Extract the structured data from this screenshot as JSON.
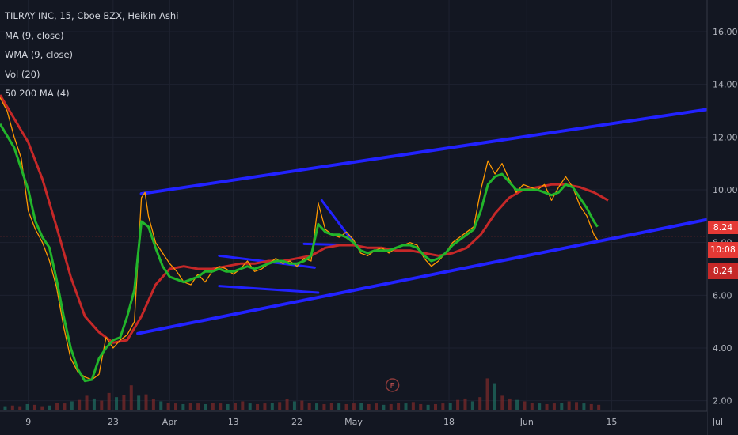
{
  "header": {
    "symbol_line": "TILRAY INC, 15, Cboe BZX, Heikin Ashi",
    "indicators": [
      "MA (9, close)",
      "WMA (9, close)",
      "Vol (20)",
      "50 200 MA (4)"
    ]
  },
  "price_tags": {
    "last": "8.24",
    "timer": "10:08",
    "ma": "8.24"
  },
  "event_marker": "E",
  "colors": {
    "background": "#131722",
    "price": "#ff9800",
    "ma_red": "#c62828",
    "ma_green": "#22b52b",
    "trendline": "#2222ff",
    "tag": "#e53935"
  },
  "chart_data": {
    "type": "line",
    "ylim": [
      1.6,
      17.2
    ],
    "y_ticks": [
      2,
      4,
      6,
      8,
      10,
      12,
      14,
      16
    ],
    "y_tick_labels": [
      "2.00",
      "4.00",
      "6.00",
      "8.00",
      "10.00",
      "12.00",
      "14.00",
      "16.00"
    ],
    "x_tick_labels": [
      "9",
      "23",
      "Apr",
      "13",
      "22",
      "May",
      "18",
      "Jun",
      "15",
      "Jul"
    ],
    "x_ticks": [
      {
        "label": "9",
        "t": 0.04
      },
      {
        "label": "23",
        "t": 0.16
      },
      {
        "label": "Apr",
        "t": 0.24
      },
      {
        "label": "13",
        "t": 0.33
      },
      {
        "label": "22",
        "t": 0.42
      },
      {
        "label": "May",
        "t": 0.5
      },
      {
        "label": "18",
        "t": 0.635
      },
      {
        "label": "Jun",
        "t": 0.745
      },
      {
        "label": "15",
        "t": 0.865
      },
      {
        "label": "Jul",
        "t": 1.015
      }
    ],
    "series": [
      {
        "name": "Price",
        "points": [
          [
            0,
            13.5
          ],
          [
            0.01,
            13.0
          ],
          [
            0.02,
            12.0
          ],
          [
            0.03,
            11.2
          ],
          [
            0.04,
            9.2
          ],
          [
            0.05,
            8.5
          ],
          [
            0.06,
            8.0
          ],
          [
            0.07,
            7.3
          ],
          [
            0.08,
            6.3
          ],
          [
            0.09,
            4.8
          ],
          [
            0.1,
            3.6
          ],
          [
            0.11,
            3.1
          ],
          [
            0.12,
            2.9
          ],
          [
            0.13,
            2.8
          ],
          [
            0.14,
            3.0
          ],
          [
            0.15,
            4.4
          ],
          [
            0.16,
            4.0
          ],
          [
            0.17,
            4.3
          ],
          [
            0.18,
            4.5
          ],
          [
            0.19,
            5.0
          ],
          [
            0.2,
            9.7
          ],
          [
            0.205,
            9.9
          ],
          [
            0.21,
            9.0
          ],
          [
            0.22,
            8.0
          ],
          [
            0.23,
            7.6
          ],
          [
            0.24,
            7.2
          ],
          [
            0.25,
            6.9
          ],
          [
            0.26,
            6.5
          ],
          [
            0.27,
            6.4
          ],
          [
            0.28,
            6.8
          ],
          [
            0.29,
            6.5
          ],
          [
            0.3,
            6.9
          ],
          [
            0.31,
            7.1
          ],
          [
            0.32,
            7.0
          ],
          [
            0.33,
            6.8
          ],
          [
            0.34,
            7.0
          ],
          [
            0.35,
            7.3
          ],
          [
            0.36,
            6.9
          ],
          [
            0.37,
            7.0
          ],
          [
            0.38,
            7.2
          ],
          [
            0.39,
            7.4
          ],
          [
            0.4,
            7.2
          ],
          [
            0.41,
            7.3
          ],
          [
            0.42,
            7.1
          ],
          [
            0.43,
            7.4
          ],
          [
            0.44,
            7.3
          ],
          [
            0.45,
            9.5
          ],
          [
            0.46,
            8.5
          ],
          [
            0.47,
            8.3
          ],
          [
            0.48,
            8.2
          ],
          [
            0.49,
            8.4
          ],
          [
            0.5,
            8.1
          ],
          [
            0.51,
            7.6
          ],
          [
            0.52,
            7.5
          ],
          [
            0.53,
            7.7
          ],
          [
            0.54,
            7.8
          ],
          [
            0.55,
            7.6
          ],
          [
            0.56,
            7.8
          ],
          [
            0.57,
            7.9
          ],
          [
            0.58,
            8.0
          ],
          [
            0.59,
            7.9
          ],
          [
            0.6,
            7.4
          ],
          [
            0.61,
            7.1
          ],
          [
            0.62,
            7.3
          ],
          [
            0.63,
            7.6
          ],
          [
            0.64,
            8.0
          ],
          [
            0.65,
            8.2
          ],
          [
            0.66,
            8.4
          ],
          [
            0.67,
            8.6
          ],
          [
            0.68,
            10.0
          ],
          [
            0.69,
            11.1
          ],
          [
            0.7,
            10.6
          ],
          [
            0.71,
            11.0
          ],
          [
            0.72,
            10.4
          ],
          [
            0.73,
            9.9
          ],
          [
            0.74,
            10.2
          ],
          [
            0.75,
            10.1
          ],
          [
            0.76,
            10.0
          ],
          [
            0.77,
            10.2
          ],
          [
            0.78,
            9.6
          ],
          [
            0.79,
            10.1
          ],
          [
            0.8,
            10.5
          ],
          [
            0.81,
            10.1
          ],
          [
            0.82,
            9.4
          ],
          [
            0.83,
            9.0
          ],
          [
            0.84,
            8.3
          ],
          [
            0.845,
            8.1
          ]
        ]
      },
      {
        "name": "Green MA",
        "points": [
          [
            0,
            12.5
          ],
          [
            0.02,
            11.6
          ],
          [
            0.04,
            10.0
          ],
          [
            0.05,
            8.8
          ],
          [
            0.06,
            8.2
          ],
          [
            0.07,
            7.8
          ],
          [
            0.08,
            6.6
          ],
          [
            0.09,
            5.2
          ],
          [
            0.1,
            4.0
          ],
          [
            0.11,
            3.2
          ],
          [
            0.12,
            2.75
          ],
          [
            0.13,
            2.8
          ],
          [
            0.14,
            3.6
          ],
          [
            0.15,
            4.0
          ],
          [
            0.16,
            4.3
          ],
          [
            0.17,
            4.4
          ],
          [
            0.18,
            5.2
          ],
          [
            0.19,
            6.2
          ],
          [
            0.2,
            8.8
          ],
          [
            0.21,
            8.6
          ],
          [
            0.22,
            7.8
          ],
          [
            0.23,
            7.1
          ],
          [
            0.24,
            6.7
          ],
          [
            0.25,
            6.6
          ],
          [
            0.26,
            6.5
          ],
          [
            0.27,
            6.6
          ],
          [
            0.28,
            6.7
          ],
          [
            0.29,
            6.9
          ],
          [
            0.3,
            6.9
          ],
          [
            0.31,
            7.0
          ],
          [
            0.32,
            6.9
          ],
          [
            0.33,
            6.9
          ],
          [
            0.34,
            7.0
          ],
          [
            0.35,
            7.1
          ],
          [
            0.36,
            7.0
          ],
          [
            0.37,
            7.1
          ],
          [
            0.38,
            7.2
          ],
          [
            0.39,
            7.3
          ],
          [
            0.4,
            7.3
          ],
          [
            0.41,
            7.2
          ],
          [
            0.42,
            7.2
          ],
          [
            0.43,
            7.3
          ],
          [
            0.44,
            7.5
          ],
          [
            0.45,
            8.7
          ],
          [
            0.46,
            8.4
          ],
          [
            0.47,
            8.3
          ],
          [
            0.48,
            8.3
          ],
          [
            0.49,
            8.2
          ],
          [
            0.5,
            8.0
          ],
          [
            0.51,
            7.7
          ],
          [
            0.52,
            7.6
          ],
          [
            0.53,
            7.7
          ],
          [
            0.54,
            7.7
          ],
          [
            0.55,
            7.7
          ],
          [
            0.56,
            7.8
          ],
          [
            0.57,
            7.9
          ],
          [
            0.58,
            7.9
          ],
          [
            0.59,
            7.8
          ],
          [
            0.6,
            7.5
          ],
          [
            0.61,
            7.3
          ],
          [
            0.62,
            7.4
          ],
          [
            0.63,
            7.6
          ],
          [
            0.64,
            7.9
          ],
          [
            0.65,
            8.1
          ],
          [
            0.66,
            8.3
          ],
          [
            0.67,
            8.5
          ],
          [
            0.68,
            9.2
          ],
          [
            0.69,
            10.2
          ],
          [
            0.7,
            10.5
          ],
          [
            0.71,
            10.6
          ],
          [
            0.72,
            10.3
          ],
          [
            0.73,
            10.0
          ],
          [
            0.74,
            10.0
          ],
          [
            0.75,
            10.0
          ],
          [
            0.76,
            10.0
          ],
          [
            0.77,
            9.9
          ],
          [
            0.78,
            9.8
          ],
          [
            0.79,
            9.9
          ],
          [
            0.8,
            10.2
          ],
          [
            0.81,
            10.1
          ],
          [
            0.82,
            9.7
          ],
          [
            0.83,
            9.3
          ],
          [
            0.84,
            8.8
          ],
          [
            0.845,
            8.6
          ]
        ]
      },
      {
        "name": "Red MA",
        "points": [
          [
            0,
            13.6
          ],
          [
            0.02,
            12.7
          ],
          [
            0.04,
            11.8
          ],
          [
            0.06,
            10.4
          ],
          [
            0.08,
            8.6
          ],
          [
            0.1,
            6.7
          ],
          [
            0.12,
            5.2
          ],
          [
            0.14,
            4.6
          ],
          [
            0.16,
            4.2
          ],
          [
            0.18,
            4.3
          ],
          [
            0.2,
            5.2
          ],
          [
            0.22,
            6.4
          ],
          [
            0.24,
            7.0
          ],
          [
            0.26,
            7.1
          ],
          [
            0.28,
            7.0
          ],
          [
            0.3,
            7.0
          ],
          [
            0.32,
            7.1
          ],
          [
            0.34,
            7.2
          ],
          [
            0.36,
            7.2
          ],
          [
            0.38,
            7.3
          ],
          [
            0.4,
            7.3
          ],
          [
            0.42,
            7.4
          ],
          [
            0.44,
            7.5
          ],
          [
            0.46,
            7.8
          ],
          [
            0.48,
            7.9
          ],
          [
            0.5,
            7.9
          ],
          [
            0.52,
            7.8
          ],
          [
            0.54,
            7.8
          ],
          [
            0.56,
            7.7
          ],
          [
            0.58,
            7.7
          ],
          [
            0.6,
            7.6
          ],
          [
            0.62,
            7.5
          ],
          [
            0.64,
            7.6
          ],
          [
            0.66,
            7.8
          ],
          [
            0.68,
            8.3
          ],
          [
            0.7,
            9.1
          ],
          [
            0.72,
            9.7
          ],
          [
            0.74,
            10.0
          ],
          [
            0.76,
            10.1
          ],
          [
            0.78,
            10.2
          ],
          [
            0.8,
            10.2
          ],
          [
            0.82,
            10.1
          ],
          [
            0.84,
            9.9
          ],
          [
            0.86,
            9.6
          ]
        ]
      }
    ],
    "volume": [
      0.05,
      0.06,
      0.05,
      0.08,
      0.07,
      0.05,
      0.06,
      0.1,
      0.09,
      0.12,
      0.14,
      0.2,
      0.16,
      0.13,
      0.24,
      0.18,
      0.21,
      0.35,
      0.2,
      0.22,
      0.15,
      0.12,
      0.1,
      0.09,
      0.08,
      0.1,
      0.09,
      0.08,
      0.1,
      0.09,
      0.08,
      0.1,
      0.12,
      0.09,
      0.08,
      0.09,
      0.1,
      0.11,
      0.15,
      0.12,
      0.13,
      0.1,
      0.09,
      0.08,
      0.1,
      0.09,
      0.08,
      0.09,
      0.1,
      0.08,
      0.09,
      0.07,
      0.08,
      0.1,
      0.09,
      0.11,
      0.08,
      0.07,
      0.08,
      0.09,
      0.1,
      0.14,
      0.16,
      0.12,
      0.18,
      0.45,
      0.38,
      0.2,
      0.16,
      0.14,
      0.12,
      0.1,
      0.09,
      0.08,
      0.09,
      0.1,
      0.12,
      0.11,
      0.09,
      0.08,
      0.07
    ],
    "trendlines": [
      {
        "from": [
          0.2,
          9.85
        ],
        "to": [
          1.0,
          13.05
        ]
      },
      {
        "from": [
          0.195,
          4.55
        ],
        "to": [
          1.005,
          8.9
        ]
      },
      {
        "from": [
          0.31,
          7.5
        ],
        "to": [
          0.445,
          7.05
        ]
      },
      {
        "from": [
          0.31,
          6.35
        ],
        "to": [
          0.45,
          6.1
        ]
      },
      {
        "from": [
          0.43,
          7.95
        ],
        "to": [
          0.505,
          7.9
        ]
      },
      {
        "from": [
          0.455,
          9.6
        ],
        "to": [
          0.5,
          8.0
        ]
      }
    ],
    "reference_line": 8.24
  }
}
